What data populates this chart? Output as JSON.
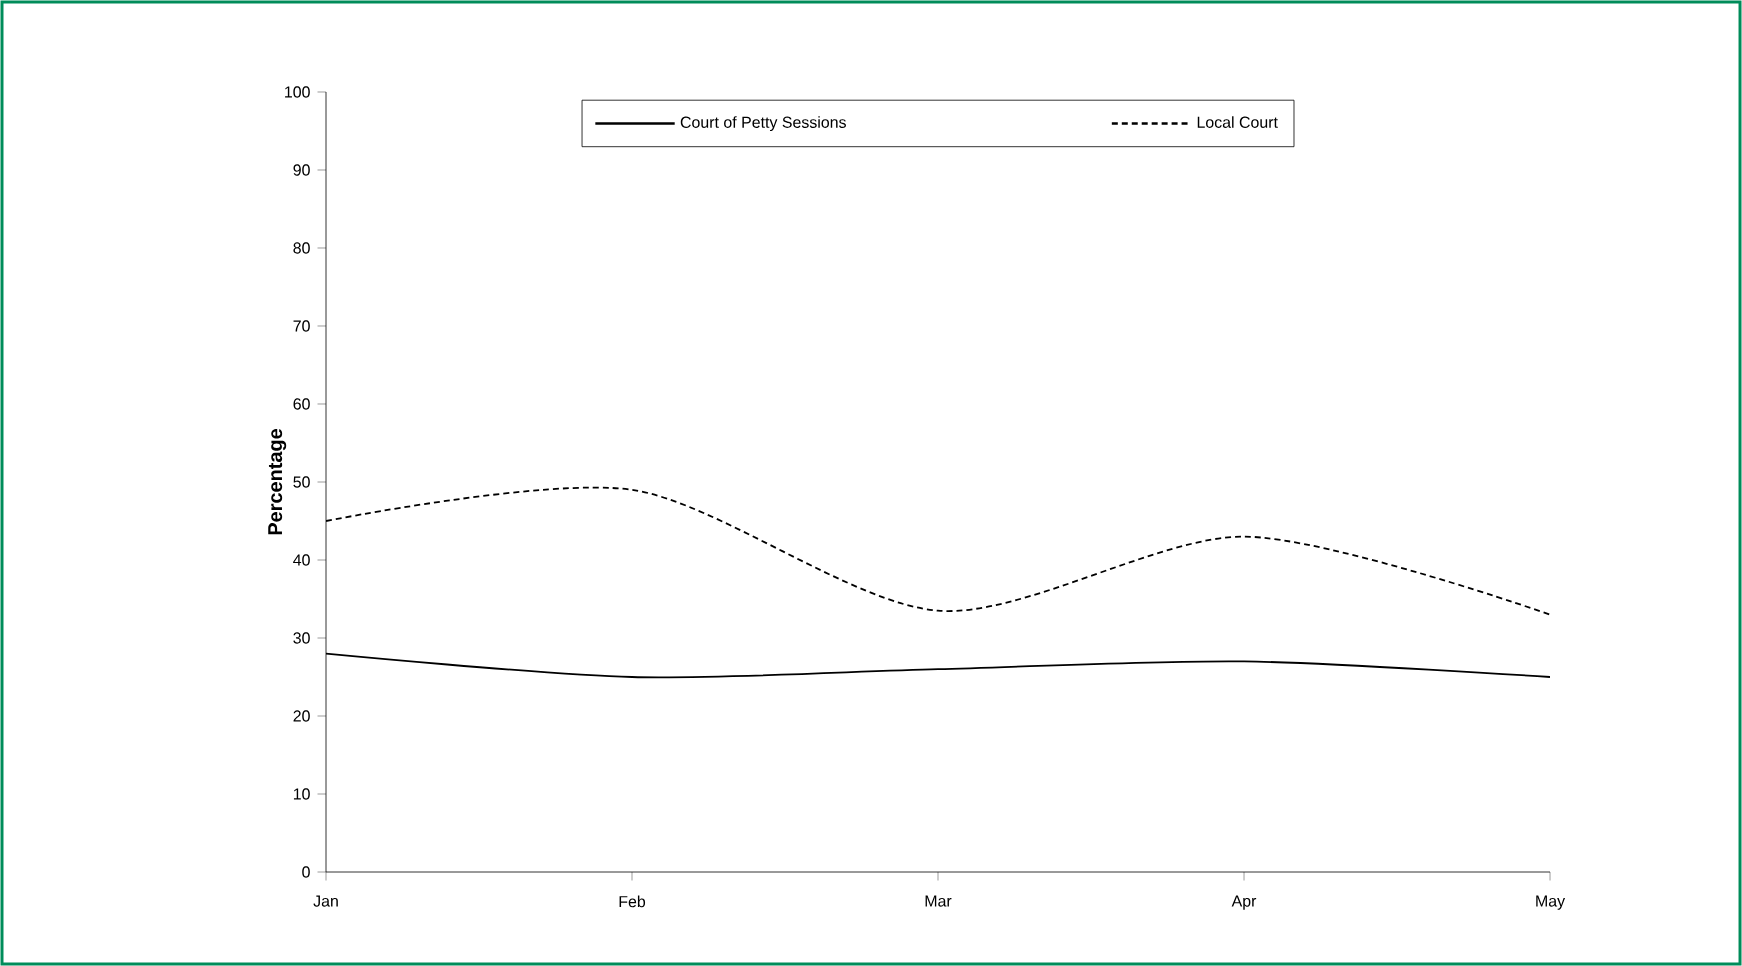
{
  "chart_data": {
    "type": "line",
    "ylabel": "Percentage",
    "categories": [
      "Jan",
      "Feb",
      "Mar",
      "Apr",
      "May"
    ],
    "series": [
      {
        "name": "Court of Petty Sessions",
        "color": "#000000",
        "line_style": "solid",
        "values": [
          28,
          25,
          26,
          27,
          25
        ]
      },
      {
        "name": "Local Court",
        "color": "#000000",
        "line_style": "dashed",
        "values": [
          45,
          49,
          33.5,
          43,
          33
        ]
      }
    ],
    "ylim": [
      0,
      100
    ],
    "yticks": [
      0,
      10,
      20,
      30,
      40,
      50,
      60,
      70,
      80,
      90,
      100
    ],
    "legend": "top",
    "marker": "none",
    "grid": false
  }
}
